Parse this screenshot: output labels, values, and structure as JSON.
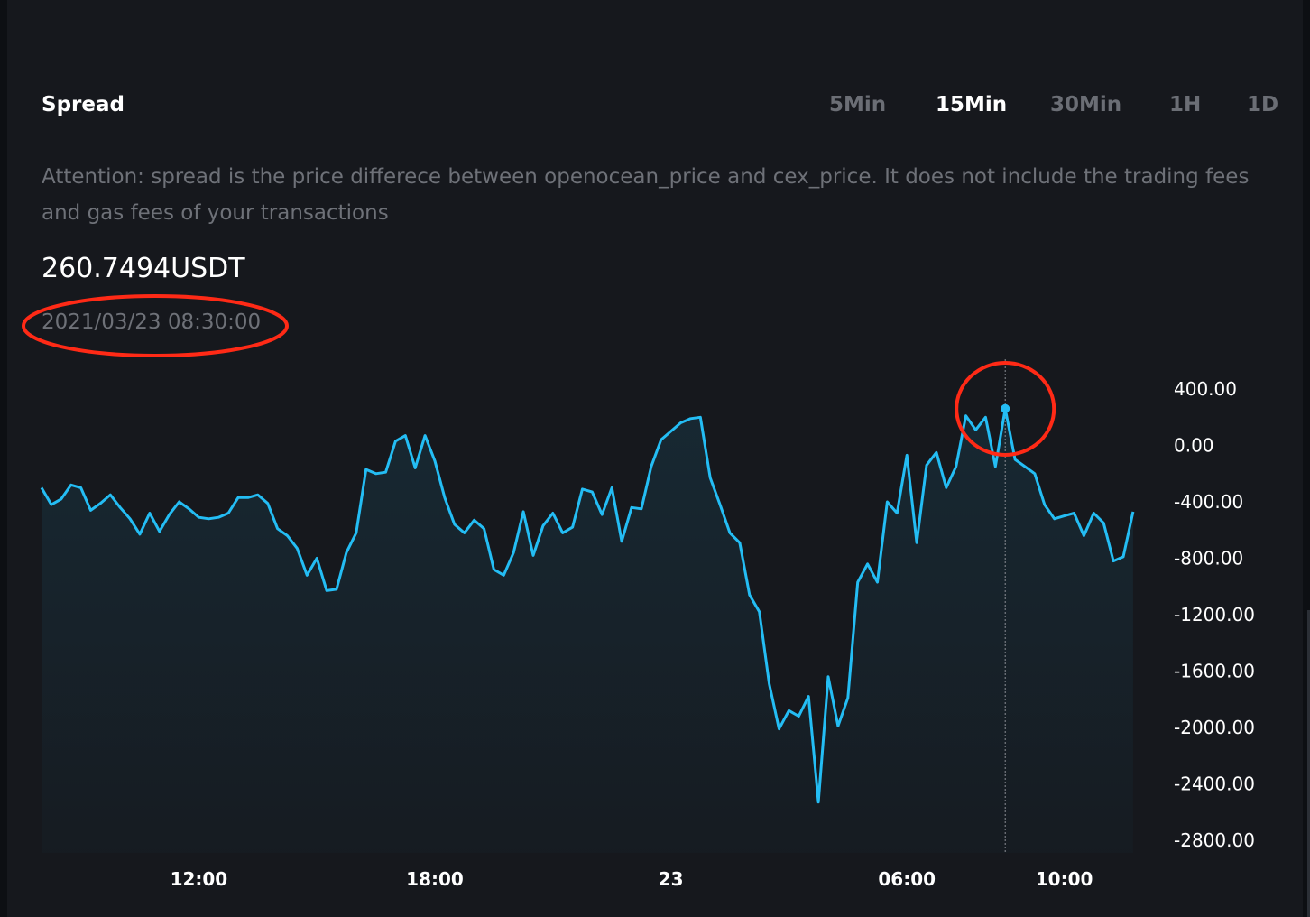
{
  "header": {
    "title": "Spread",
    "tabs": [
      {
        "label": "5Min",
        "active": false
      },
      {
        "label": "15Min",
        "active": true
      },
      {
        "label": "30Min",
        "active": false
      },
      {
        "label": "1H",
        "active": false
      },
      {
        "label": "1D",
        "active": false
      }
    ]
  },
  "notice": "Attention: spread is the price differece between openocean_price and cex_price. It does not include the trading fees and gas fees of your transactions",
  "current": {
    "value": "260.7494USDT",
    "timestamp": "2021/03/23 08:30:00"
  },
  "colors": {
    "background": "#16181d",
    "line": "#24bdf4",
    "annotation": "#ff2a16",
    "muted_text": "#6e7178"
  },
  "chart_data": {
    "type": "area",
    "xlabel": "",
    "ylabel": "",
    "ylim": [
      -2800,
      400
    ],
    "y_ticks": [
      "400.00",
      "0.00",
      "-400.00",
      "-800.00",
      "-1200.00",
      "-1600.00",
      "-2000.00",
      "-2400.00",
      "-2800.00"
    ],
    "x_ticks": [
      {
        "label": "12:00",
        "hour": 12,
        "bold": false
      },
      {
        "label": "18:00",
        "hour": 18,
        "bold": false
      },
      {
        "label": "23",
        "hour": 24,
        "bold": true
      },
      {
        "label": "06:00",
        "hour": 30,
        "bold": false
      },
      {
        "label": "10:00",
        "hour": 34,
        "bold": false
      }
    ],
    "x_start_hour": 8.0,
    "x_step_hours": 0.25,
    "highlight": {
      "hour": 32.5,
      "value": 260.7494,
      "timestamp": "2021/03/23 08:30:00"
    },
    "series": [
      {
        "values": [
          -300,
          -420,
          -380,
          -280,
          -300,
          -460,
          -410,
          -350,
          -440,
          -520,
          -630,
          -480,
          -610,
          -490,
          -400,
          -450,
          -510,
          -520,
          -510,
          -480,
          -370,
          -370,
          -350,
          -410,
          -590,
          -640,
          -730,
          -920,
          -800,
          -1030,
          -1020,
          -760,
          -620,
          -170,
          -200,
          -190,
          30,
          70,
          -160,
          70,
          -110,
          -370,
          -560,
          -620,
          -530,
          -590,
          -880,
          -920,
          -760,
          -470,
          -780,
          -570,
          -480,
          -620,
          -580,
          -310,
          -330,
          -490,
          -300,
          -680,
          -440,
          -450,
          -150,
          40,
          100,
          160,
          190,
          200,
          -230,
          -420,
          -620,
          -690,
          -1060,
          -1180,
          -1690,
          -2010,
          -1880,
          -1920,
          -1780,
          -2530,
          -1640,
          -1990,
          -1790,
          -970,
          -840,
          -970,
          -400,
          -480,
          -70,
          -690,
          -140,
          -50,
          -300,
          -150,
          210,
          110,
          200,
          -150,
          260,
          -100,
          -150,
          -200,
          -420,
          -520,
          -500,
          -480,
          -640,
          -480,
          -550,
          -820,
          -790,
          -470
        ]
      }
    ]
  }
}
